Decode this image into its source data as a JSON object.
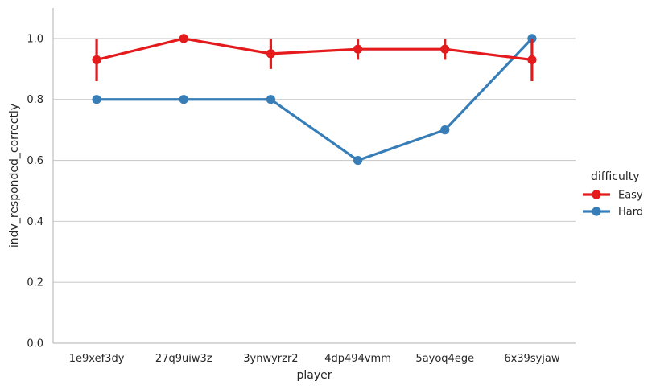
{
  "chart_data": {
    "type": "line",
    "xlabel": "player",
    "ylabel": "indv_responded_correctly",
    "categories": [
      "1e9xef3dy",
      "27q9uiw3z",
      "3ynwyrzr2",
      "4dp494vmm",
      "5ayoq4ege",
      "6x39syjaw"
    ],
    "ylim": [
      0,
      1.1
    ],
    "yticks": [
      "0.0",
      "0.2",
      "0.4",
      "0.6",
      "0.8",
      "1.0"
    ],
    "grid": "horizontal",
    "legend": {
      "title": "difficulty",
      "placement": "right"
    },
    "series": [
      {
        "name": "Easy",
        "color": "#e41a1c",
        "values": [
          0.93,
          1.0,
          0.95,
          0.965,
          0.965,
          0.93
        ],
        "error": [
          [
            0.86,
            1.0
          ],
          [
            1.0,
            1.0
          ],
          [
            0.9,
            1.0
          ],
          [
            0.93,
            1.0
          ],
          [
            0.93,
            1.0
          ],
          [
            0.86,
            1.0
          ]
        ]
      },
      {
        "name": "Hard",
        "color": "#377eb8",
        "values": [
          0.8,
          0.8,
          0.8,
          0.6,
          0.7,
          1.0
        ],
        "error": null
      }
    ]
  }
}
